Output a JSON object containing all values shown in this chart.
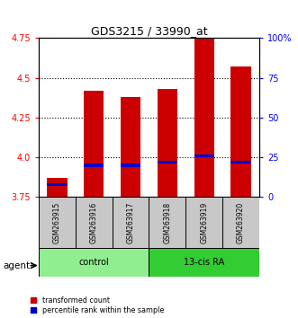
{
  "title": "GDS3215 / 33990_at",
  "samples": [
    "GSM263915",
    "GSM263916",
    "GSM263917",
    "GSM263918",
    "GSM263919",
    "GSM263920"
  ],
  "groups": [
    "control",
    "control",
    "control",
    "13-cis RA",
    "13-cis RA",
    "13-cis RA"
  ],
  "group_colors": {
    "control": "#90EE90",
    "13-cis RA": "#33CC33"
  },
  "bar_bottom": 3.75,
  "transformed_counts": [
    3.87,
    4.42,
    4.38,
    4.43,
    4.78,
    4.57
  ],
  "percentile_ranks_pct": [
    8,
    20,
    20,
    22,
    26,
    22
  ],
  "ylim_left": [
    3.75,
    4.75
  ],
  "ylim_right": [
    0,
    100
  ],
  "bar_color": "#CC0000",
  "percentile_color": "#0000CC",
  "bar_width": 0.55,
  "legend_red_label": "transformed count",
  "legend_blue_label": "percentile rank within the sample",
  "agent_label": "agent",
  "ylabel_left_ticks": [
    3.75,
    4.0,
    4.25,
    4.5,
    4.75
  ],
  "ylabel_right_ticks": [
    0,
    25,
    50,
    75,
    100
  ],
  "sample_box_color": "#C8C8C8",
  "background_color": "#FFFFFF"
}
